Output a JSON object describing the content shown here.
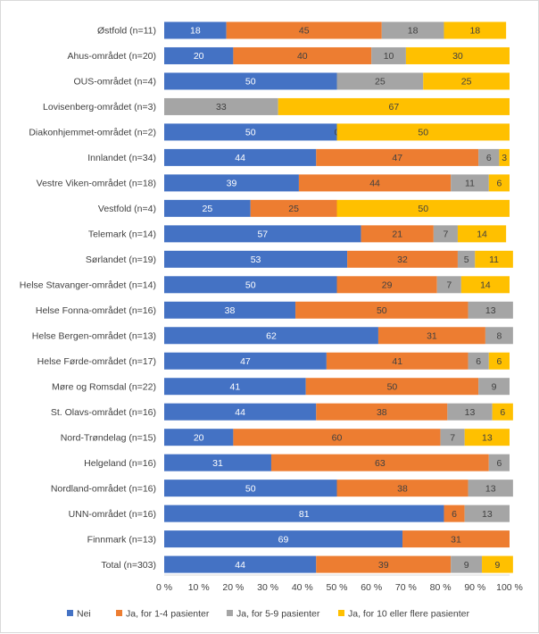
{
  "chart_data": {
    "type": "bar",
    "orientation": "horizontal",
    "stacked": true,
    "percent_stacked": true,
    "categories": [
      "Østfold (n=11)",
      "Ahus-området (n=20)",
      "OUS-området (n=4)",
      "Lovisenberg-området (n=3)",
      "Diakonhjemmet-området (n=2)",
      "Innlandet (n=34)",
      "Vestre Viken-området (n=18)",
      "Vestfold (n=4)",
      "Telemark (n=14)",
      "Sørlandet (n=19)",
      "Helse Stavanger-området (n=14)",
      "Helse Fonna-området (n=16)",
      "Helse Bergen-området (n=13)",
      "Helse Førde-området (n=17)",
      "Møre og Romsdal (n=22)",
      "St. Olavs-området (n=16)",
      "Nord-Trøndelag (n=15)",
      "Helgeland (n=16)",
      "Nordland-området (n=16)",
      "UNN-området (n=16)",
      "Finnmark (n=13)",
      "Total (n=303)"
    ],
    "series": [
      {
        "name": "Nei",
        "color": "#4472C4",
        "label_color": "#ffffff",
        "values": [
          18,
          20,
          50,
          0,
          50,
          44,
          39,
          25,
          57,
          53,
          50,
          38,
          62,
          47,
          41,
          44,
          20,
          31,
          50,
          81,
          69,
          44
        ],
        "labels": [
          "18",
          "20",
          "50",
          "",
          "50",
          "44",
          "39",
          "25",
          "57",
          "53",
          "50",
          "38",
          "62",
          "47",
          "41",
          "44",
          "20",
          "31",
          "50",
          "81",
          "69",
          "44"
        ]
      },
      {
        "name": "Ja, for 1-4 pasienter",
        "color": "#ED7D31",
        "label_color": "#404040",
        "values": [
          45,
          40,
          0,
          0,
          0,
          47,
          44,
          25,
          21,
          32,
          29,
          50,
          31,
          41,
          50,
          38,
          60,
          63,
          38,
          6,
          31,
          39
        ],
        "labels": [
          "45",
          "40",
          "",
          "",
          "0",
          "47",
          "44",
          "25",
          "21",
          "32",
          "29",
          "50",
          "31",
          "41",
          "50",
          "38",
          "60",
          "63",
          "38",
          "6",
          "31",
          "39"
        ]
      },
      {
        "name": "Ja, for 5-9 pasienter",
        "color": "#A5A5A5",
        "label_color": "#404040",
        "values": [
          18,
          10,
          25,
          33,
          0,
          6,
          11,
          0,
          7,
          5,
          7,
          13,
          8,
          6,
          9,
          13,
          7,
          6,
          13,
          13,
          0,
          9
        ],
        "labels": [
          "18",
          "10",
          "25",
          "33",
          "",
          "6",
          "11",
          "",
          "7",
          "5",
          "7",
          "13",
          "8",
          "6",
          "9",
          "13",
          "7",
          "6",
          "13",
          "13",
          "",
          "9"
        ]
      },
      {
        "name": "Ja, for 10 eller flere pasienter",
        "color": "#FFC000",
        "label_color": "#404040",
        "values": [
          18,
          30,
          25,
          67,
          50,
          3,
          6,
          50,
          14,
          11,
          14,
          0,
          0,
          6,
          0,
          6,
          13,
          0,
          0,
          0,
          0,
          9
        ],
        "labels": [
          "18",
          "30",
          "25",
          "67",
          "50",
          "3",
          "6",
          "50",
          "14",
          "11",
          "14",
          "",
          "",
          "6",
          "",
          "6",
          "13",
          "",
          "",
          "",
          "",
          "9"
        ]
      }
    ],
    "x_ticks": [
      "0 %",
      "10 %",
      "20 %",
      "30 %",
      "40 %",
      "50 %",
      "60 %",
      "70 %",
      "80 %",
      "90 %",
      "100 %"
    ],
    "xlim": [
      0,
      100
    ],
    "grid": false,
    "legend_position": "bottom"
  }
}
